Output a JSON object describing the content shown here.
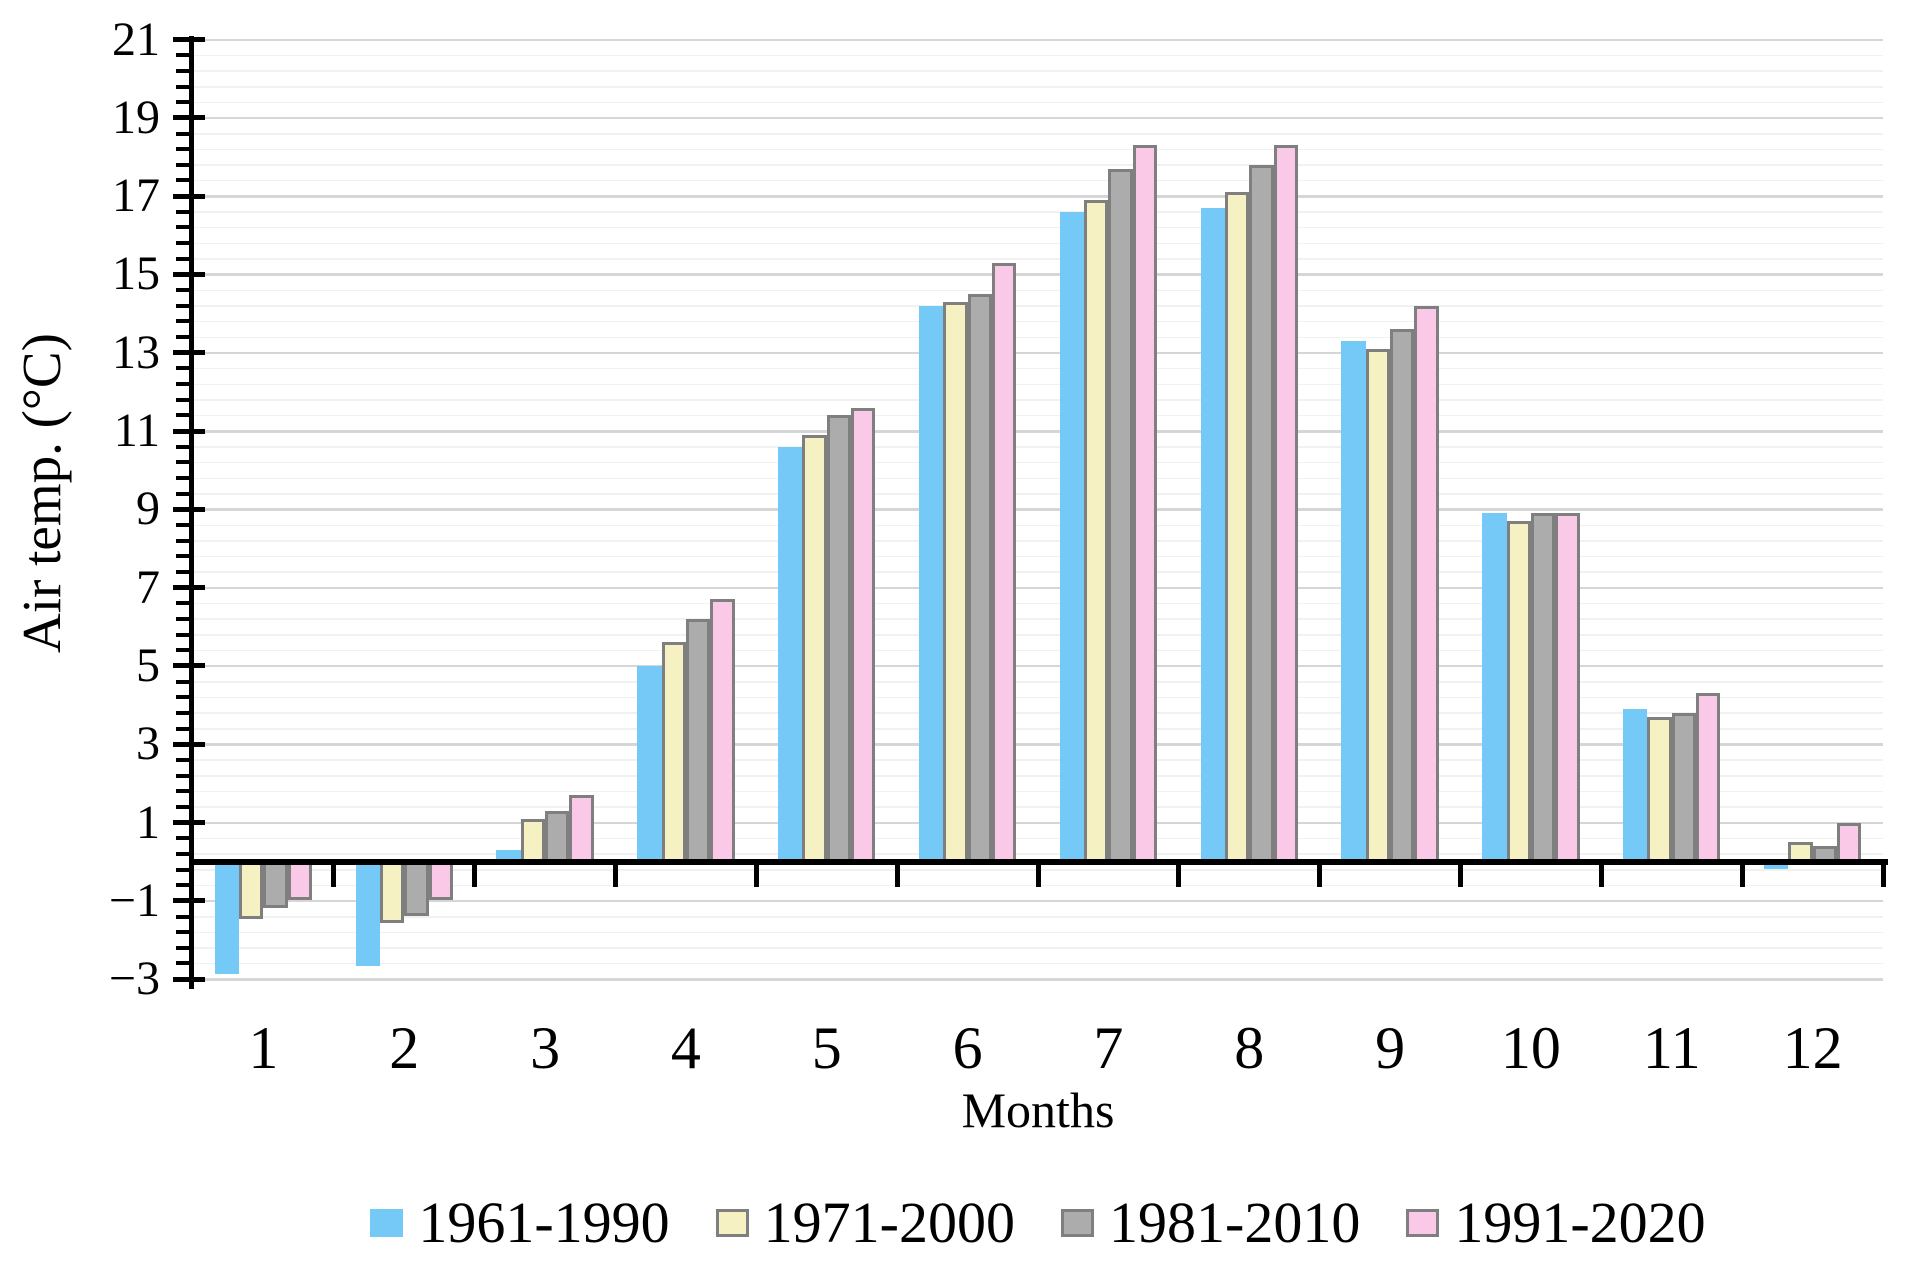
{
  "chart_data": {
    "type": "bar",
    "title": "",
    "xlabel": "Months",
    "ylabel": "Air temp. (°C)",
    "categories": [
      "1",
      "2",
      "3",
      "4",
      "5",
      "6",
      "7",
      "8",
      "9",
      "10",
      "11",
      "12"
    ],
    "series": [
      {
        "name": "1961-1990",
        "color": "#74C9F6",
        "border": null,
        "values": [
          -2.8,
          -2.6,
          0.3,
          5.0,
          10.6,
          14.2,
          16.6,
          16.7,
          13.3,
          8.9,
          3.9,
          -0.1
        ]
      },
      {
        "name": "1971-2000",
        "color": "#F6F1C3",
        "border": "#7F7F7F",
        "values": [
          -1.4,
          -1.5,
          1.1,
          5.6,
          10.9,
          14.3,
          16.9,
          17.1,
          13.1,
          8.7,
          3.7,
          0.5
        ]
      },
      {
        "name": "1981-2010",
        "color": "#ACACAC",
        "border": "#7F7F7F",
        "values": [
          -1.1,
          -1.3,
          1.3,
          6.2,
          11.4,
          14.5,
          17.7,
          17.8,
          13.6,
          8.9,
          3.8,
          0.4
        ]
      },
      {
        "name": "1991-2020",
        "color": "#FBC9E8",
        "border": "#7F7F7F",
        "values": [
          -0.9,
          -0.9,
          1.7,
          6.7,
          11.6,
          15.3,
          18.3,
          18.3,
          14.2,
          8.9,
          4.3,
          1.0
        ]
      }
    ],
    "ylim": [
      -3.2,
      21
    ],
    "ytick_values": [
      -3,
      -1,
      1,
      3,
      5,
      7,
      9,
      11,
      13,
      15,
      17,
      19,
      21
    ],
    "ytick_labels": [
      "−3",
      "−1",
      "1",
      "3",
      "5",
      "7",
      "9",
      "11",
      "13",
      "15",
      "17",
      "19",
      "21"
    ],
    "minor_tick_step": 0.4,
    "grid": {
      "major_color": "#D6D6D6",
      "minor_color": "#F1F1F1",
      "major_on": true,
      "minor_on": true
    },
    "axis_color": "#000000",
    "legend_position": "bottom",
    "legend_labels": [
      "1961-1990",
      "1971-2000",
      "1981-2010",
      "1991-2020"
    ]
  }
}
